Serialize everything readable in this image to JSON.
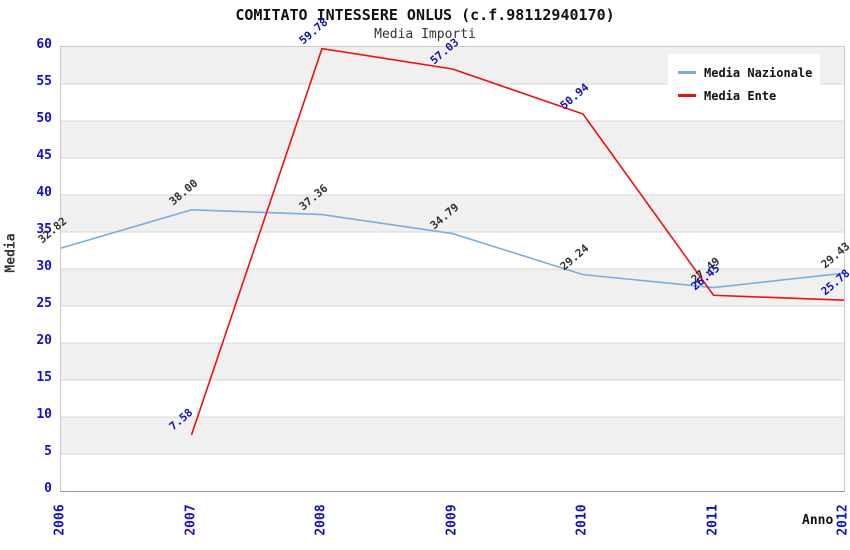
{
  "title": "COMITATO INTESSERE ONLUS (c.f.98112940170)",
  "subtitle": "Media Importi",
  "chart_data": {
    "type": "line",
    "x": [
      "2006",
      "2007",
      "2008",
      "2009",
      "2010",
      "2011",
      "2012"
    ],
    "series": [
      {
        "name": "Media Nazionale",
        "color": "#7aaede",
        "label_color": "#333333",
        "values": [
          32.82,
          38.0,
          37.36,
          34.79,
          29.24,
          27.49,
          29.43
        ]
      },
      {
        "name": "Media Ente",
        "color": "#ee1010",
        "label_color": "#1111bb",
        "values": [
          null,
          7.58,
          59.78,
          57.03,
          50.94,
          26.45,
          25.78
        ]
      }
    ],
    "xlabel": "Anno",
    "ylabel": "Media",
    "ylim": [
      0,
      60
    ],
    "yticks": [
      0,
      5,
      10,
      15,
      20,
      25,
      30,
      35,
      40,
      45,
      50,
      55,
      60
    ],
    "grid": true,
    "band_colors": [
      "#f0f0f0",
      "#ffffff"
    ],
    "legend_position": "top-right"
  },
  "colors": {
    "tick_label": "#1111cc",
    "grid_line": "#d8d8d8",
    "plot_border": "#c9c9c9"
  }
}
